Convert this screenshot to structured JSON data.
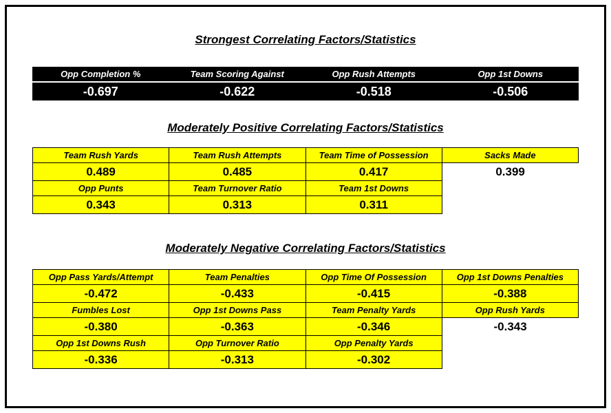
{
  "titles": {
    "strongest": "Strongest Correlating Factors/Statistics",
    "positive": "Moderately Positive Correlating Factors/Statistics",
    "negative": "Moderately Negative Correlating Factors/Statistics"
  },
  "strongest": {
    "headers": [
      "Opp Completion %",
      "Team Scoring Against",
      "Opp Rush Attempts",
      "Opp 1st Downs"
    ],
    "values": [
      "-0.697",
      "-0.622",
      "-0.518",
      "-0.506"
    ]
  },
  "positive": {
    "rows": [
      {
        "headers": [
          "Team Rush Yards",
          "Team Rush Attempts",
          "Team Time of Possession",
          "Sacks Made"
        ],
        "values": [
          "0.489",
          "0.485",
          "0.417",
          "0.399"
        ]
      },
      {
        "headers": [
          "Opp Punts",
          "Team Turnover Ratio",
          "Team 1st Downs"
        ],
        "values": [
          "0.343",
          "0.313",
          "0.311"
        ]
      }
    ]
  },
  "negative": {
    "rows": [
      {
        "headers": [
          "Opp Pass Yards/Attempt",
          "Team Penalties",
          "Opp Time Of Possession",
          "Opp 1st Downs Penalties"
        ],
        "values": [
          "-0.472",
          "-0.433",
          "-0.415",
          "-0.388"
        ]
      },
      {
        "headers": [
          "Fumbles Lost",
          "Opp 1st Downs Pass",
          "Team Penalty Yards",
          "Opp Rush Yards"
        ],
        "values": [
          "-0.380",
          "-0.363",
          "-0.346",
          "-0.343"
        ]
      },
      {
        "headers": [
          "Opp 1st Downs Rush",
          "Opp Turnover Ratio",
          "Opp Penalty Yards"
        ],
        "values": [
          "-0.336",
          "-0.313",
          "-0.302"
        ]
      }
    ]
  },
  "colors": {
    "highlight_yellow": "#FFFF00",
    "strong_table_bg": "#000000",
    "strong_table_text": "#FFFFFF",
    "text": "#000000",
    "page_border": "#000000"
  }
}
